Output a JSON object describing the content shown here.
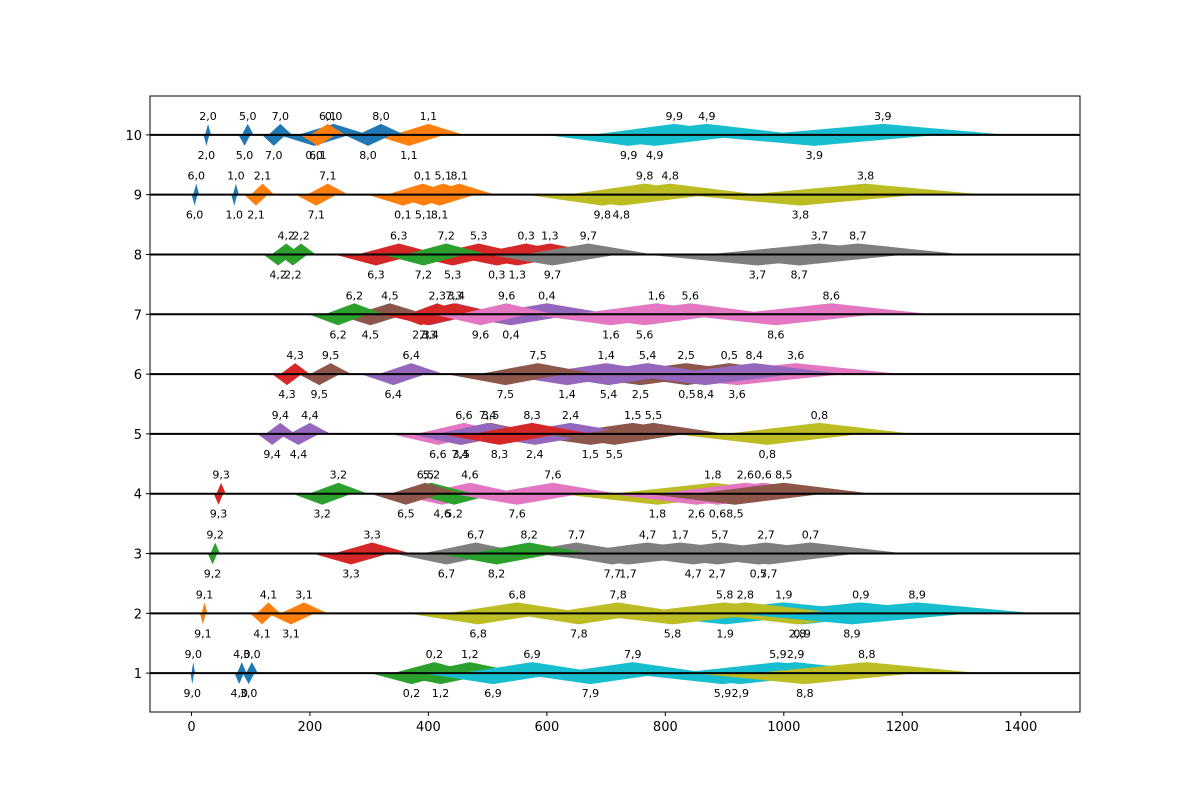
{
  "chart_data": {
    "type": "scatter",
    "title": "",
    "xlabel": "",
    "ylabel": "",
    "xlim": [
      -70,
      1500
    ],
    "ylim": [
      0.35,
      10.65
    ],
    "x_ticks": [
      0,
      200,
      400,
      600,
      800,
      1000,
      1200,
      1400
    ],
    "y_ticks": [
      1,
      2,
      3,
      4,
      5,
      6,
      7,
      8,
      9,
      10
    ],
    "grid": false,
    "legend": "none",
    "baseline_color": "#000000",
    "palette": [
      "#1f77b4",
      "#ff7f0e",
      "#2ca02c",
      "#d62728",
      "#9467bd",
      "#8c564b",
      "#e377c2",
      "#7f7f7f",
      "#bcbd22",
      "#17becf"
    ],
    "marks": [
      {
        "label": "0,0",
        "i": 0,
        "j": 0,
        "y": 10,
        "x": 240,
        "w": 60,
        "dir": 1
      },
      {
        "label": "0,1",
        "i": 0,
        "j": 1,
        "y": 9,
        "x": 390,
        "w": 60,
        "dir": 1
      },
      {
        "label": "0,2",
        "i": 0,
        "j": 2,
        "y": 1,
        "x": 410,
        "w": 70,
        "dir": 1
      },
      {
        "label": "0,3",
        "i": 0,
        "j": 3,
        "y": 8,
        "x": 565,
        "w": 90,
        "dir": 1
      },
      {
        "label": "0,4",
        "i": 0,
        "j": 4,
        "y": 7,
        "x": 600,
        "w": 110,
        "dir": 1
      },
      {
        "label": "0,5",
        "i": 0,
        "j": 5,
        "y": 6,
        "x": 908,
        "w": 130,
        "dir": 1
      },
      {
        "label": "0,6",
        "i": 0,
        "j": 6,
        "y": 4,
        "x": 965,
        "w": 140,
        "dir": 1
      },
      {
        "label": "0,7",
        "i": 0,
        "j": 7,
        "y": 3,
        "x": 1045,
        "w": 160,
        "dir": 1
      },
      {
        "label": "0,8",
        "i": 0,
        "j": 8,
        "y": 5,
        "x": 1060,
        "w": 160,
        "dir": 1
      },
      {
        "label": "0,9",
        "i": 0,
        "j": 9,
        "y": 2,
        "x": 1130,
        "w": 180,
        "dir": 1
      },
      {
        "label": "1,0",
        "i": 1,
        "j": 0,
        "y": 9,
        "x": 75,
        "w": 5,
        "dir": 1
      },
      {
        "label": "1,1",
        "i": 1,
        "j": 1,
        "y": 10,
        "x": 400,
        "w": 60,
        "dir": 1
      },
      {
        "label": "1,2",
        "i": 1,
        "j": 2,
        "y": 1,
        "x": 470,
        "w": 90,
        "dir": 1
      },
      {
        "label": "1,3",
        "i": 1,
        "j": 3,
        "y": 8,
        "x": 605,
        "w": 100,
        "dir": 1
      },
      {
        "label": "1,4",
        "i": 1,
        "j": 4,
        "y": 6,
        "x": 700,
        "w": 120,
        "dir": 1
      },
      {
        "label": "1,5",
        "i": 1,
        "j": 5,
        "y": 5,
        "x": 745,
        "w": 130,
        "dir": 1
      },
      {
        "label": "1,6",
        "i": 1,
        "j": 6,
        "y": 7,
        "x": 785,
        "w": 140,
        "dir": 1
      },
      {
        "label": "1,7",
        "i": 1,
        "j": 7,
        "y": 3,
        "x": 825,
        "w": 160,
        "dir": 1
      },
      {
        "label": "1,8",
        "i": 1,
        "j": 8,
        "y": 4,
        "x": 880,
        "w": 170,
        "dir": 1
      },
      {
        "label": "1,9",
        "i": 1,
        "j": 9,
        "y": 2,
        "x": 1000,
        "w": 180,
        "dir": 1
      },
      {
        "label": "2,0",
        "i": 2,
        "j": 0,
        "y": 10,
        "x": 28,
        "w": 5,
        "dir": 1
      },
      {
        "label": "2,1",
        "i": 2,
        "j": 1,
        "y": 9,
        "x": 120,
        "w": 20,
        "dir": 1
      },
      {
        "label": "2,2",
        "i": 2,
        "j": 2,
        "y": 8,
        "x": 185,
        "w": 25,
        "dir": 1
      },
      {
        "label": "2,3",
        "i": 2,
        "j": 3,
        "y": 7,
        "x": 415,
        "w": 50,
        "dir": 1
      },
      {
        "label": "2,4",
        "i": 2,
        "j": 4,
        "y": 5,
        "x": 640,
        "w": 110,
        "dir": 1
      },
      {
        "label": "2,5",
        "i": 2,
        "j": 5,
        "y": 6,
        "x": 835,
        "w": 140,
        "dir": 1
      },
      {
        "label": "2,6",
        "i": 2,
        "j": 6,
        "y": 4,
        "x": 935,
        "w": 150,
        "dir": 1
      },
      {
        "label": "2,7",
        "i": 2,
        "j": 7,
        "y": 3,
        "x": 970,
        "w": 150,
        "dir": 1
      },
      {
        "label": "2,8",
        "i": 2,
        "j": 8,
        "y": 2,
        "x": 935,
        "w": 160,
        "dir": -1
      },
      {
        "label": "2,9",
        "i": 2,
        "j": 9,
        "y": 1,
        "x": 1020,
        "w": 170,
        "dir": 1
      },
      {
        "label": "3,0",
        "i": 3,
        "j": 0,
        "y": 1,
        "x": 102,
        "w": 10,
        "dir": 1
      },
      {
        "label": "3,1",
        "i": 3,
        "j": 1,
        "y": 2,
        "x": 190,
        "w": 40,
        "dir": 1
      },
      {
        "label": "3,2",
        "i": 3,
        "j": 2,
        "y": 4,
        "x": 248,
        "w": 50,
        "dir": 1
      },
      {
        "label": "3,3",
        "i": 3,
        "j": 3,
        "y": 3,
        "x": 305,
        "w": 65,
        "dir": 1
      },
      {
        "label": "3,4",
        "i": 3,
        "j": 4,
        "y": 7,
        "x": 447,
        "w": 80,
        "dir": 1
      },
      {
        "label": "3,5",
        "i": 3,
        "j": 5,
        "y": 5,
        "x": 505,
        "w": 90,
        "dir": 1
      },
      {
        "label": "3,6",
        "i": 3,
        "j": 6,
        "y": 6,
        "x": 1020,
        "w": 180,
        "dir": 1
      },
      {
        "label": "3,7",
        "i": 3,
        "j": 7,
        "y": 8,
        "x": 1060,
        "w": 190,
        "dir": 1
      },
      {
        "label": "3,8",
        "i": 3,
        "j": 8,
        "y": 9,
        "x": 1138,
        "w": 200,
        "dir": 1
      },
      {
        "label": "3,9",
        "i": 3,
        "j": 9,
        "y": 10,
        "x": 1167,
        "w": 210,
        "dir": 1
      },
      {
        "label": "4,0",
        "i": 4,
        "j": 0,
        "y": 1,
        "x": 85,
        "w": 8,
        "dir": 1
      },
      {
        "label": "4,1",
        "i": 4,
        "j": 1,
        "y": 2,
        "x": 130,
        "w": 20,
        "dir": 1
      },
      {
        "label": "4,2",
        "i": 4,
        "j": 2,
        "y": 8,
        "x": 160,
        "w": 25,
        "dir": 1
      },
      {
        "label": "4,3",
        "i": 4,
        "j": 3,
        "y": 6,
        "x": 175,
        "w": 25,
        "dir": 1
      },
      {
        "label": "4,4",
        "i": 4,
        "j": 4,
        "y": 5,
        "x": 200,
        "w": 35,
        "dir": 1
      },
      {
        "label": "4,5",
        "i": 4,
        "j": 5,
        "y": 7,
        "x": 335,
        "w": 60,
        "dir": 1
      },
      {
        "label": "4,6",
        "i": 4,
        "j": 6,
        "y": 4,
        "x": 470,
        "w": 85,
        "dir": 1
      },
      {
        "label": "4,7",
        "i": 4,
        "j": 7,
        "y": 3,
        "x": 770,
        "w": 140,
        "dir": -1
      },
      {
        "label": "4,8",
        "i": 4,
        "j": 8,
        "y": 9,
        "x": 808,
        "w": 150,
        "dir": 1
      },
      {
        "label": "4,9",
        "i": 4,
        "j": 9,
        "y": 10,
        "x": 870,
        "w": 160,
        "dir": 1
      },
      {
        "label": "5,0",
        "i": 5,
        "j": 0,
        "y": 10,
        "x": 95,
        "w": 10,
        "dir": 1
      },
      {
        "label": "5,1",
        "i": 5,
        "j": 1,
        "y": 9,
        "x": 425,
        "w": 60,
        "dir": 1
      },
      {
        "label": "5,2",
        "i": 5,
        "j": 2,
        "y": 4,
        "x": 405,
        "w": 70,
        "dir": -1
      },
      {
        "label": "5,3",
        "i": 5,
        "j": 3,
        "y": 8,
        "x": 485,
        "w": 80,
        "dir": 1
      },
      {
        "label": "5,4",
        "i": 5,
        "j": 4,
        "y": 6,
        "x": 770,
        "w": 120,
        "dir": 1
      },
      {
        "label": "5,5",
        "i": 5,
        "j": 5,
        "y": 5,
        "x": 780,
        "w": 120,
        "dir": 1
      },
      {
        "label": "5,6",
        "i": 5,
        "j": 6,
        "y": 7,
        "x": 842,
        "w": 140,
        "dir": 1
      },
      {
        "label": "5,7",
        "i": 5,
        "j": 7,
        "y": 3,
        "x": 892,
        "w": 150,
        "dir": -1
      },
      {
        "label": "5,8",
        "i": 5,
        "j": 8,
        "y": 2,
        "x": 900,
        "w": 160,
        "dir": 1
      },
      {
        "label": "5,9",
        "i": 5,
        "j": 9,
        "y": 1,
        "x": 990,
        "w": 170,
        "dir": 1
      },
      {
        "label": "6,0",
        "i": 6,
        "j": 0,
        "y": 9,
        "x": 8,
        "w": 5,
        "dir": 1
      },
      {
        "label": "6,1",
        "i": 6,
        "j": 1,
        "y": 10,
        "x": 230,
        "w": 30,
        "dir": 1
      },
      {
        "label": "6,2",
        "i": 6,
        "j": 2,
        "y": 7,
        "x": 275,
        "w": 50,
        "dir": 1
      },
      {
        "label": "6,3",
        "i": 6,
        "j": 3,
        "y": 8,
        "x": 350,
        "w": 70,
        "dir": 1
      },
      {
        "label": "6,4",
        "i": 6,
        "j": 4,
        "y": 6,
        "x": 371,
        "w": 55,
        "dir": 1
      },
      {
        "label": "6,5",
        "i": 6,
        "j": 5,
        "y": 4,
        "x": 395,
        "w": 60,
        "dir": 1
      },
      {
        "label": "6,6",
        "i": 6,
        "j": 6,
        "y": 5,
        "x": 460,
        "w": 80,
        "dir": 1
      },
      {
        "label": "6,7",
        "i": 6,
        "j": 7,
        "y": 3,
        "x": 480,
        "w": 90,
        "dir": 1
      },
      {
        "label": "6,8",
        "i": 6,
        "j": 8,
        "y": 2,
        "x": 550,
        "w": 120,
        "dir": 1
      },
      {
        "label": "6,9",
        "i": 6,
        "j": 9,
        "y": 1,
        "x": 575,
        "w": 120,
        "dir": 1
      },
      {
        "label": "7,0",
        "i": 7,
        "j": 0,
        "y": 10,
        "x": 150,
        "w": 20,
        "dir": 1
      },
      {
        "label": "7,1",
        "i": 7,
        "j": 1,
        "y": 9,
        "x": 230,
        "w": 35,
        "dir": 1
      },
      {
        "label": "7,2",
        "i": 7,
        "j": 2,
        "y": 8,
        "x": 430,
        "w": 70,
        "dir": 1
      },
      {
        "label": "7,3",
        "i": 7,
        "j": 3,
        "y": 7,
        "x": 443,
        "w": 80,
        "dir": 1
      },
      {
        "label": "7,4",
        "i": 7,
        "j": 4,
        "y": 5,
        "x": 500,
        "w": 85,
        "dir": 1
      },
      {
        "label": "7,5",
        "i": 7,
        "j": 5,
        "y": 6,
        "x": 585,
        "w": 100,
        "dir": 1
      },
      {
        "label": "7,6",
        "i": 7,
        "j": 6,
        "y": 4,
        "x": 610,
        "w": 110,
        "dir": 1
      },
      {
        "label": "7,7",
        "i": 7,
        "j": 7,
        "y": 3,
        "x": 650,
        "w": 110,
        "dir": -1
      },
      {
        "label": "7,8",
        "i": 7,
        "j": 8,
        "y": 2,
        "x": 720,
        "w": 120,
        "dir": 1
      },
      {
        "label": "7,9",
        "i": 7,
        "j": 9,
        "y": 1,
        "x": 745,
        "w": 130,
        "dir": 1
      },
      {
        "label": "8,0",
        "i": 8,
        "j": 0,
        "y": 10,
        "x": 320,
        "w": 40,
        "dir": 1
      },
      {
        "label": "8,1",
        "i": 8,
        "j": 1,
        "y": 9,
        "x": 452,
        "w": 60,
        "dir": 1
      },
      {
        "label": "8,2",
        "i": 8,
        "j": 2,
        "y": 3,
        "x": 570,
        "w": 100,
        "dir": 1
      },
      {
        "label": "8,3",
        "i": 8,
        "j": 3,
        "y": 5,
        "x": 575,
        "w": 100,
        "dir": 1
      },
      {
        "label": "8,4",
        "i": 8,
        "j": 4,
        "y": 6,
        "x": 950,
        "w": 150,
        "dir": 1
      },
      {
        "label": "8,5",
        "i": 8,
        "j": 5,
        "y": 4,
        "x": 1000,
        "w": 150,
        "dir": 1
      },
      {
        "label": "8,6",
        "i": 8,
        "j": 6,
        "y": 7,
        "x": 1080,
        "w": 170,
        "dir": 1
      },
      {
        "label": "8,7",
        "i": 8,
        "j": 7,
        "y": 8,
        "x": 1125,
        "w": 180,
        "dir": 1
      },
      {
        "label": "8,8",
        "i": 8,
        "j": 8,
        "y": 1,
        "x": 1140,
        "w": 190,
        "dir": 1
      },
      {
        "label": "8,9",
        "i": 8,
        "j": 9,
        "y": 2,
        "x": 1225,
        "w": 200,
        "dir": 1
      },
      {
        "label": "9,0",
        "i": 9,
        "j": 0,
        "y": 1,
        "x": 3,
        "w": 3,
        "dir": 1
      },
      {
        "label": "9,1",
        "i": 9,
        "j": 1,
        "y": 2,
        "x": 22,
        "w": 5,
        "dir": 1
      },
      {
        "label": "9,2",
        "i": 9,
        "j": 2,
        "y": 3,
        "x": 40,
        "w": 8,
        "dir": 1
      },
      {
        "label": "9,3",
        "i": 9,
        "j": 3,
        "y": 4,
        "x": 50,
        "w": 8,
        "dir": 1
      },
      {
        "label": "9,4",
        "i": 9,
        "j": 4,
        "y": 5,
        "x": 150,
        "w": 25,
        "dir": 1
      },
      {
        "label": "9,5",
        "i": 9,
        "j": 5,
        "y": 6,
        "x": 235,
        "w": 35,
        "dir": 1
      },
      {
        "label": "9,6",
        "i": 9,
        "j": 6,
        "y": 7,
        "x": 532,
        "w": 80,
        "dir": 1
      },
      {
        "label": "9,7",
        "i": 9,
        "j": 7,
        "y": 8,
        "x": 670,
        "w": 110,
        "dir": 1
      },
      {
        "label": "9,8",
        "i": 9,
        "j": 8,
        "y": 9,
        "x": 765,
        "w": 130,
        "dir": 1
      },
      {
        "label": "9,9",
        "i": 9,
        "j": 9,
        "y": 10,
        "x": 815,
        "w": 140,
        "dir": 1
      }
    ]
  }
}
